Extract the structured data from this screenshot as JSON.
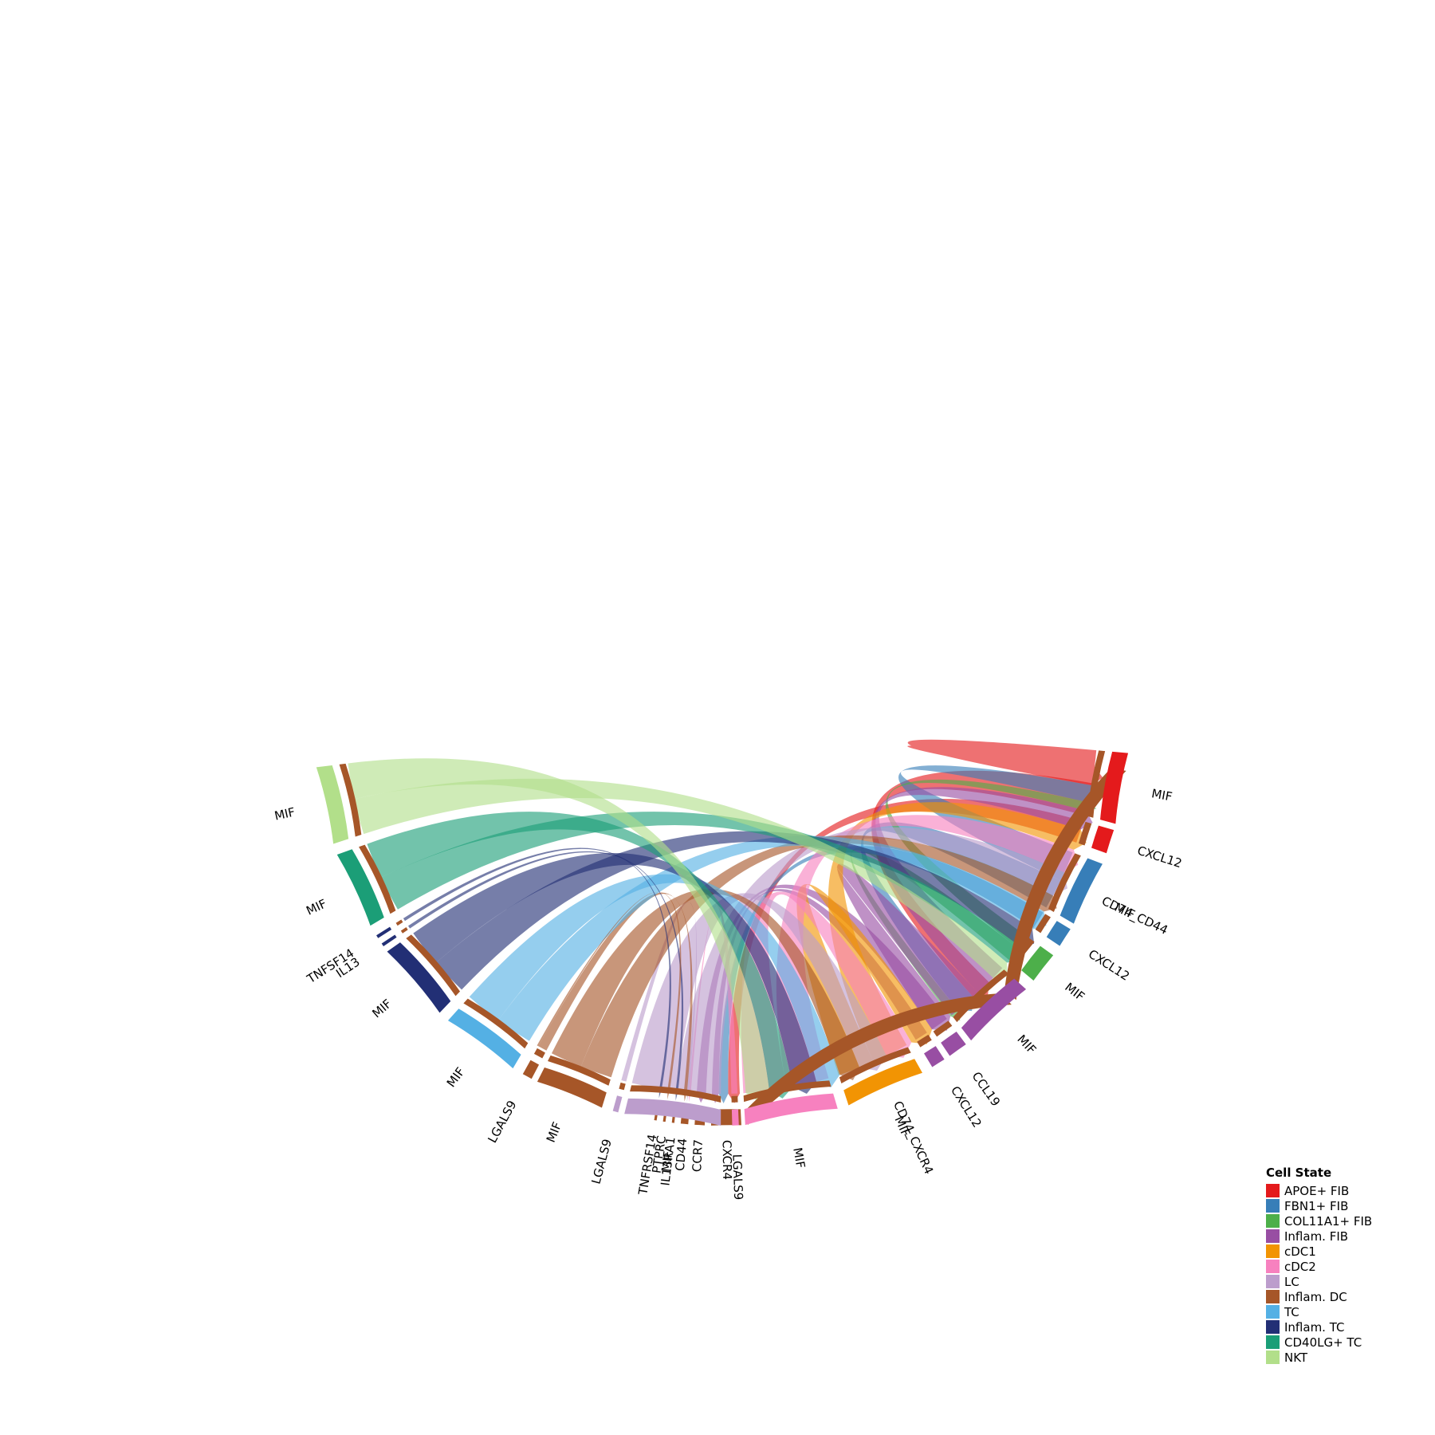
{
  "chart_data": {
    "type": "chord",
    "title": "",
    "legend": {
      "title": "Cell State",
      "placement": "bottom-right",
      "items": [
        {
          "label": "APOE+ FIB",
          "color": "#e41a1c"
        },
        {
          "label": "FBN1+ FIB",
          "color": "#377eb8"
        },
        {
          "label": "COL11A1+ FIB",
          "color": "#4daf4a"
        },
        {
          "label": "Inflam. FIB",
          "color": "#984ea3"
        },
        {
          "label": "cDC1",
          "color": "#f29403"
        },
        {
          "label": "cDC2",
          "color": "#f781bf"
        },
        {
          "label": "LC",
          "color": "#bc9dcc"
        },
        {
          "label": "Inflam. DC",
          "color": "#a65628"
        },
        {
          "label": "TC",
          "color": "#54b0e4"
        },
        {
          "label": "Inflam. TC",
          "color": "#222f75"
        },
        {
          "label": "CD40LG+ TC",
          "color": "#1b9e77"
        },
        {
          "label": "NKT",
          "color": "#b2df8a"
        }
      ]
    },
    "receptors": [
      {
        "label": "CD74_CD44",
        "cell": "Inflam. DC",
        "value": 41
      },
      {
        "label": "CD74_CXCR4",
        "cell": "Inflam. DC",
        "value": 47
      },
      {
        "label": "CXCR4",
        "cell": "Inflam. DC",
        "value": 4.8
      },
      {
        "label": "CCR7",
        "cell": "Inflam. DC",
        "value": 1.6
      },
      {
        "label": "CD44",
        "cell": "Inflam. DC",
        "value": 1.2
      },
      {
        "label": "IL13RA1",
        "cell": "Inflam. DC",
        "value": 0.4
      },
      {
        "label": "PTPRC",
        "cell": "Inflam. DC",
        "value": 0.4
      },
      {
        "label": "TNFRSF14",
        "cell": "Inflam. DC",
        "value": 0.4
      }
    ],
    "ligands": [
      {
        "label": "MIF",
        "cell": "APOE+ FIB",
        "value": 6.5
      },
      {
        "label": "CXCL12",
        "cell": "APOE+ FIB",
        "value": 2.2
      },
      {
        "label": "MIF",
        "cell": "FBN1+ FIB",
        "value": 6.0
      },
      {
        "label": "CXCL12",
        "cell": "FBN1+ FIB",
        "value": 1.8
      },
      {
        "label": "MIF",
        "cell": "COL11A1+ FIB",
        "value": 2.9
      },
      {
        "label": "MIF",
        "cell": "Inflam. FIB",
        "value": 6.8
      },
      {
        "label": "CCL19",
        "cell": "Inflam. FIB",
        "value": 1.8
      },
      {
        "label": "CXCL12",
        "cell": "Inflam. FIB",
        "value": 1.3
      },
      {
        "label": "MIF",
        "cell": "cDC1",
        "value": 7.3
      },
      {
        "label": "MIF",
        "cell": "cDC2",
        "value": 8.5
      },
      {
        "label": "LGALS9",
        "cell": "cDC2",
        "value": 0.6
      },
      {
        "label": "MIF",
        "cell": "LC",
        "value": 8.8
      },
      {
        "label": "LGALS9",
        "cell": "LC",
        "value": 0.5
      },
      {
        "label": "MIF",
        "cell": "Inflam. DC",
        "value": 6.3
      },
      {
        "label": "LGALS9",
        "cell": "Inflam. DC",
        "value": 0.9
      },
      {
        "label": "MIF",
        "cell": "TC",
        "value": 7.3
      },
      {
        "label": "MIF",
        "cell": "Inflam. TC",
        "value": 7.3
      },
      {
        "label": "IL13",
        "cell": "Inflam. TC",
        "value": 0.3
      },
      {
        "label": "TNFSF14",
        "cell": "Inflam. TC",
        "value": 0.3
      },
      {
        "label": "MIF",
        "cell": "CD40LG+ TC",
        "value": 7.1
      },
      {
        "label": "MIF",
        "cell": "NKT",
        "value": 7.1
      }
    ]
  }
}
